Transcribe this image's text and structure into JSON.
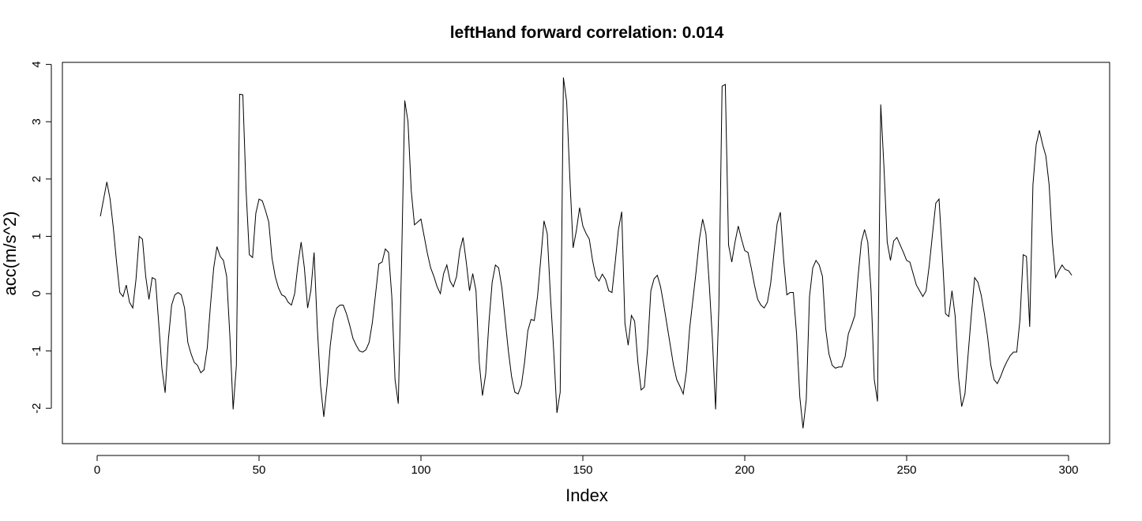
{
  "chart_data": {
    "type": "line",
    "title": "leftHand forward correlation: 0.014",
    "xlabel": "Index",
    "ylabel": "acc(m/s^2)",
    "xlim": [
      1,
      301
    ],
    "ylim": [
      -2.4,
      3.8
    ],
    "x_ticks": [
      "0",
      "50",
      "100",
      "150",
      "200",
      "250",
      "300"
    ],
    "y_ticks": [
      "-2",
      "-1",
      "0",
      "1",
      "2",
      "3",
      "4"
    ],
    "grid": false,
    "legend": "none",
    "line_color": "#000000",
    "series": [
      {
        "values": [
          1.35,
          1.65,
          1.95,
          1.65,
          1.15,
          0.55,
          0.02,
          -0.05,
          0.15,
          -0.15,
          -0.25,
          0.25,
          1.0,
          0.95,
          0.3,
          -0.1,
          0.28,
          0.25,
          -0.5,
          -1.3,
          -1.73,
          -0.8,
          -0.2,
          -0.02,
          0.02,
          -0.02,
          -0.25,
          -0.85,
          -1.05,
          -1.2,
          -1.25,
          -1.38,
          -1.33,
          -0.95,
          -0.2,
          0.45,
          0.82,
          0.65,
          0.58,
          0.3,
          -0.75,
          -2.02,
          -1.25,
          3.48,
          3.47,
          1.8,
          0.68,
          0.63,
          1.4,
          1.65,
          1.62,
          1.45,
          1.25,
          0.62,
          0.3,
          0.1,
          -0.02,
          -0.05,
          -0.15,
          -0.2,
          0.0,
          0.5,
          0.9,
          0.45,
          -0.25,
          0.05,
          0.72,
          -0.6,
          -1.6,
          -2.15,
          -1.6,
          -0.9,
          -0.45,
          -0.25,
          -0.2,
          -0.2,
          -0.35,
          -0.55,
          -0.78,
          -0.9,
          -1.0,
          -1.02,
          -0.98,
          -0.85,
          -0.5,
          0.0,
          0.52,
          0.55,
          0.78,
          0.72,
          -0.05,
          -1.5,
          -1.92,
          0.5,
          3.37,
          3.0,
          1.8,
          1.2,
          1.25,
          1.3,
          1.0,
          0.7,
          0.45,
          0.3,
          0.12,
          0.0,
          0.35,
          0.5,
          0.22,
          0.12,
          0.3,
          0.75,
          0.98,
          0.55,
          0.05,
          0.35,
          0.05,
          -1.2,
          -1.78,
          -1.4,
          -0.5,
          0.2,
          0.5,
          0.45,
          0.1,
          -0.45,
          -1.0,
          -1.45,
          -1.72,
          -1.75,
          -1.6,
          -1.2,
          -0.65,
          -0.45,
          -0.47,
          -0.05,
          0.6,
          1.27,
          1.05,
          -0.05,
          -1.0,
          -2.08,
          -1.72,
          3.77,
          3.35,
          2.0,
          0.8,
          1.1,
          1.5,
          1.18,
          1.05,
          0.95,
          0.58,
          0.3,
          0.22,
          0.34,
          0.25,
          0.05,
          0.02,
          0.55,
          1.12,
          1.43,
          -0.52,
          -0.9,
          -0.38,
          -0.48,
          -1.2,
          -1.68,
          -1.63,
          -0.95,
          0.05,
          0.26,
          0.32,
          0.12,
          -0.2,
          -0.55,
          -0.9,
          -1.25,
          -1.5,
          -1.62,
          -1.75,
          -1.35,
          -0.6,
          -0.1,
          0.4,
          0.95,
          1.3,
          1.05,
          0.2,
          -0.78,
          -2.02,
          -0.25,
          3.62,
          3.65,
          0.85,
          0.55,
          0.9,
          1.18,
          0.95,
          0.75,
          0.72,
          0.45,
          0.15,
          -0.1,
          -0.2,
          -0.25,
          -0.15,
          0.18,
          0.7,
          1.22,
          1.42,
          0.6,
          -0.02,
          0.02,
          0.02,
          -0.7,
          -1.8,
          -2.35,
          -1.85,
          -0.05,
          0.45,
          0.58,
          0.5,
          0.3,
          -0.62,
          -1.05,
          -1.25,
          -1.3,
          -1.28,
          -1.28,
          -1.1,
          -0.7,
          -0.55,
          -0.38,
          0.3,
          0.9,
          1.12,
          0.9,
          0.05,
          -1.5,
          -1.88,
          3.3,
          2.2,
          0.9,
          0.58,
          0.92,
          0.98,
          0.85,
          0.72,
          0.58,
          0.55,
          0.35,
          0.15,
          0.05,
          -0.05,
          0.05,
          0.5,
          1.05,
          1.58,
          1.65,
          0.7,
          -0.35,
          -0.4,
          0.05,
          -0.4,
          -1.45,
          -1.97,
          -1.75,
          -1.05,
          -0.35,
          0.28,
          0.2,
          -0.02,
          -0.35,
          -0.75,
          -1.25,
          -1.5,
          -1.57,
          -1.45,
          -1.3,
          -1.18,
          -1.08,
          -1.02,
          -1.02,
          -0.45,
          0.68,
          0.65,
          -0.58,
          1.9,
          2.6,
          2.85,
          2.6,
          2.4,
          1.9,
          0.9,
          0.28,
          0.4,
          0.5,
          0.42,
          0.4,
          0.32
        ]
      }
    ]
  }
}
